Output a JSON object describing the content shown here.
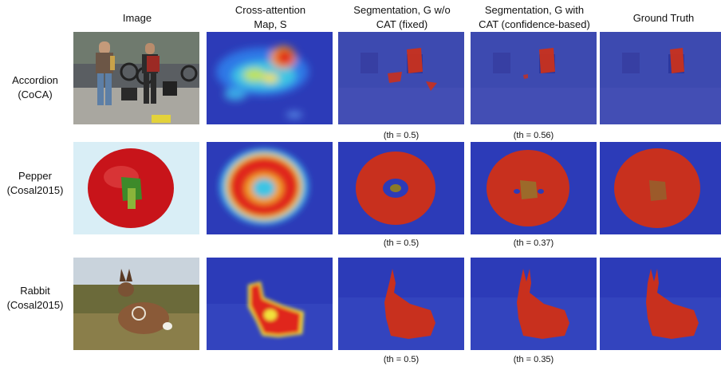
{
  "figure": {
    "columns": [
      "Image",
      "Cross-attention\nMap, S",
      "Segmentation, G w/o\nCAT (fixed)",
      "Segmentation, G with\nCAT (confidence-based)",
      "Ground Truth"
    ],
    "rows": [
      {
        "label": "Accordion\n(CoCA)",
        "th_fixed": "(th = 0.5)",
        "th_cat": "(th = 0.56)"
      },
      {
        "label": "Pepper\n(Cosal2015)",
        "th_fixed": "(th = 0.5)",
        "th_cat": "(th = 0.37)"
      },
      {
        "label": "Rabbit\n(Cosal2015)",
        "th_fixed": "(th = 0.5)",
        "th_cat": "(th = 0.35)"
      }
    ]
  },
  "colors": {
    "overlay_blue": "#2c3bb8",
    "mask_red": "#c8301e",
    "heat_red": "#e0261c",
    "heat_yellow": "#f2e23a",
    "heat_cyan": "#33c6e8"
  }
}
